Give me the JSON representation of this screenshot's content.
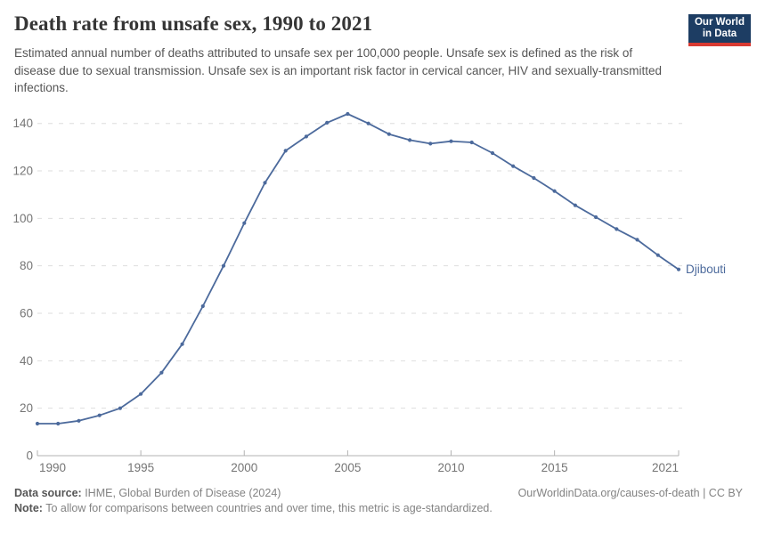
{
  "header": {
    "title": "Death rate from unsafe sex, 1990 to 2021",
    "subtitle": "Estimated annual number of deaths attributed to unsafe sex per 100,000 people. Unsafe sex is defined as the risk of disease due to sexual transmission. Unsafe sex is an important risk factor in cervical cancer, HIV and sexually-transmitted infections."
  },
  "logo": {
    "line1": "Our World",
    "line2": "in Data",
    "bg_color": "#1d3d63",
    "bar_color": "#d93a32"
  },
  "chart_data": {
    "type": "line",
    "title": "Death rate from unsafe sex, 1990 to 2021",
    "xlabel": "",
    "ylabel": "",
    "x": [
      1990,
      1991,
      1992,
      1993,
      1994,
      1995,
      1996,
      1997,
      1998,
      1999,
      2000,
      2001,
      2002,
      2003,
      2004,
      2005,
      2006,
      2007,
      2008,
      2009,
      2010,
      2011,
      2012,
      2013,
      2014,
      2015,
      2016,
      2017,
      2018,
      2019,
      2020,
      2021
    ],
    "series": [
      {
        "name": "Djibouti",
        "color": "#4C6A9C",
        "values": [
          13.5,
          13.5,
          14.7,
          17,
          20,
          26,
          35,
          47,
          63,
          80,
          98,
          115,
          128.5,
          134.5,
          140.3,
          144,
          140,
          135.5,
          133,
          131.5,
          132.5,
          132,
          127.5,
          122,
          117,
          111.5,
          105.5,
          100.5,
          95.5,
          91,
          84.5,
          78.5
        ]
      }
    ],
    "ylim": [
      0,
      140
    ],
    "yticks": [
      0,
      20,
      40,
      60,
      80,
      100,
      120,
      140
    ],
    "xticks": [
      1990,
      1995,
      2000,
      2005,
      2010,
      2015,
      2021
    ],
    "grid": "horizontal-dashed",
    "legend_position": "end-of-line-label",
    "end_label": "Djibouti"
  },
  "footer": {
    "datasource_label": "Data source:",
    "datasource_text": " IHME, Global Burden of Disease (2024)",
    "url_text": "OurWorldinData.org/causes-of-death | CC BY",
    "note_label": "Note:",
    "note_text": " To allow for comparisons between countries and over time, this metric is age-standardized."
  },
  "colors": {
    "line": "#4C6A9C",
    "gridline": "#dedede",
    "axis": "#b3b3b3",
    "tick_label": "#757575",
    "title": "#353535",
    "subtitle": "#565656"
  }
}
